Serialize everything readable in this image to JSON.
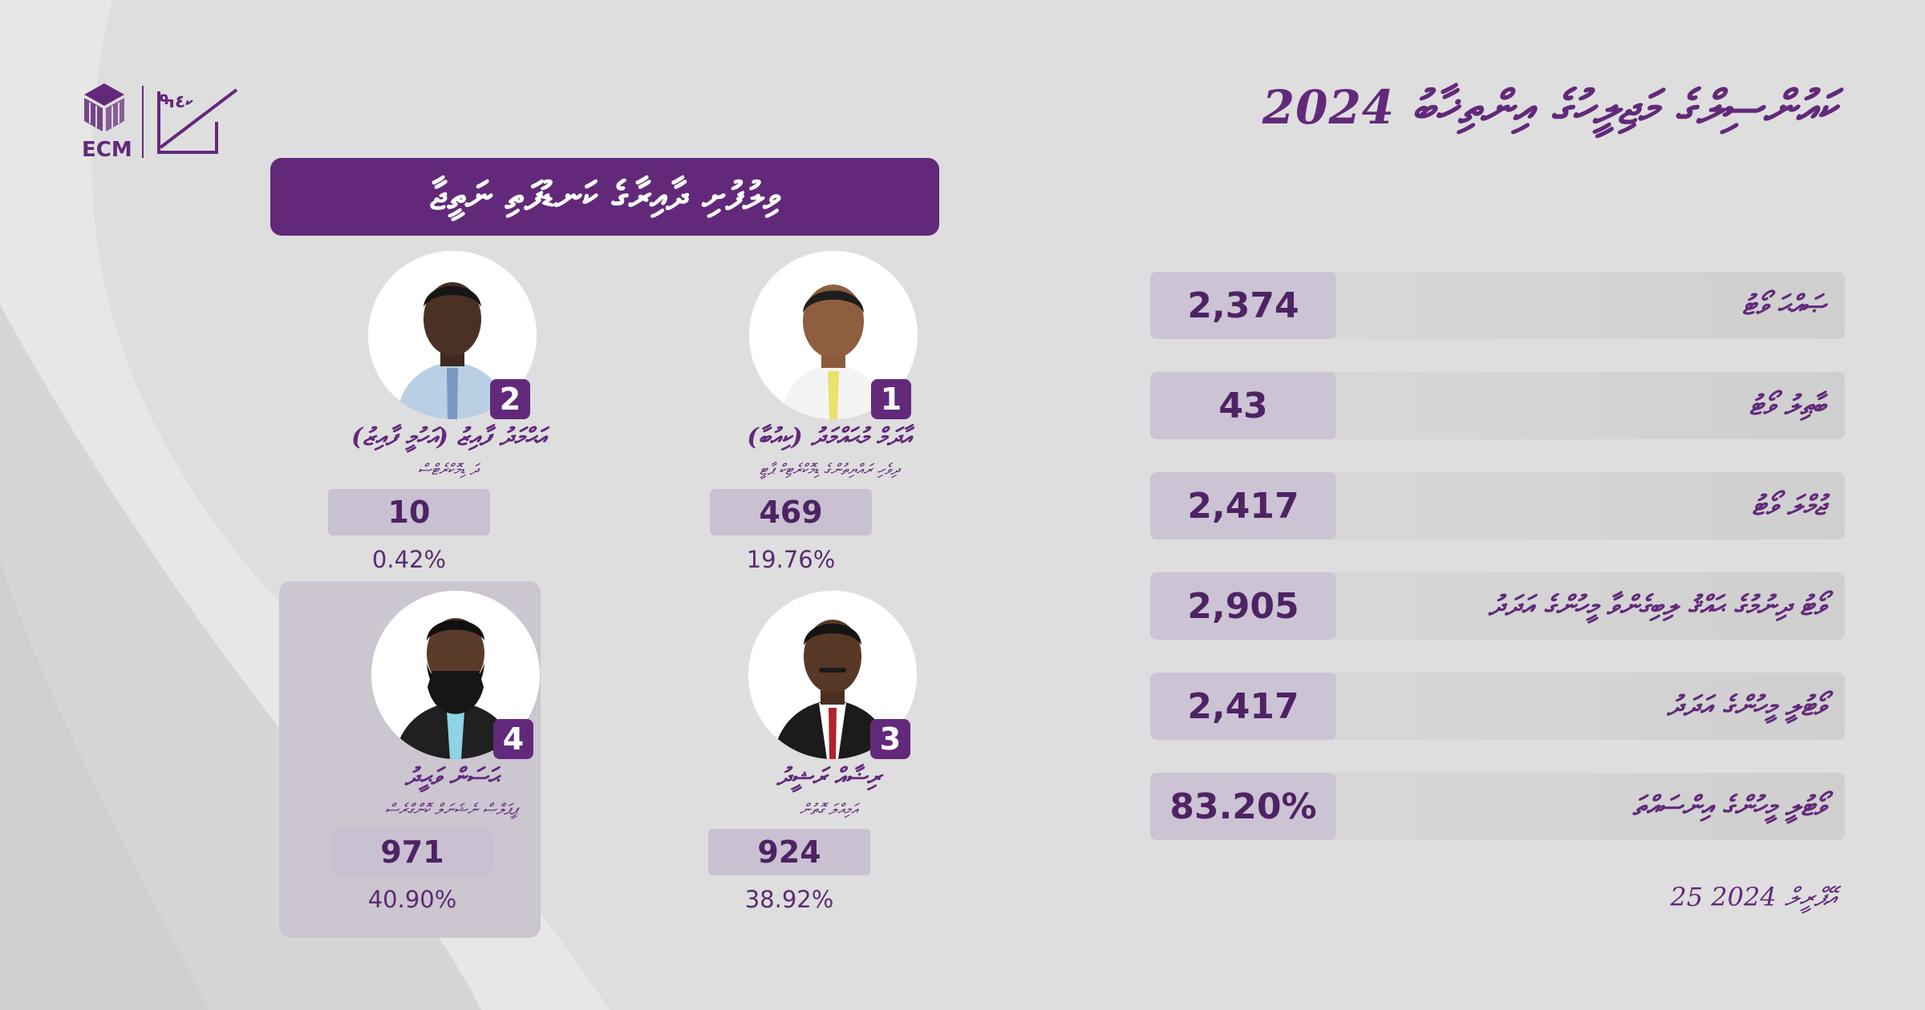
{
  "colors": {
    "brand_purple": "#62297a",
    "value_box": "#ccc3d4",
    "background": "#dedede"
  },
  "logo": {
    "abbr": "ECM",
    "icon": "cube-logo-icon",
    "ballot_icon": "ballot-check-icon"
  },
  "title": "ކައުންސިލްގެ މަޖިލީހުގެ އިންތިޚާބު 2024",
  "banner": "ވިލުފުށި ދާއިރާގެ ކަނޑުފަތި ނަތީޖާ",
  "candidates": [
    {
      "number": "1",
      "name": "އާދަމް މުޙައްމަދު (ކިއުބާ)",
      "party": "ދިވެހި ރައްޔިތުންގެ ޑިމޮކްރެޓިކް ޕާޓީ",
      "votes": "469",
      "percent": "19.76%"
    },
    {
      "number": "2",
      "name": "އަޙްމަދު ފާއިޒު (އަހުމީ ފާއިޒު)",
      "party": "ދަ ޑިމޮކްރެޓްސް",
      "votes": "10",
      "percent": "0.42%"
    },
    {
      "number": "3",
      "name": "ރިޟާއް ރަޝީދު",
      "party": "އަމިއްލަ ގޮތުން",
      "votes": "924",
      "percent": "38.92%"
    },
    {
      "number": "4",
      "name": "ޙަސަން ވަޙީދު",
      "party": "ޕީޕަލްސް ނެޝަނަލް ކޮންގްރެސް",
      "votes": "971",
      "percent": "40.90%"
    }
  ],
  "stats": [
    {
      "label": "ޞައްޙަ ވޯޓު",
      "value": "2,374"
    },
    {
      "label": "ބާޠިލު ވޯޓު",
      "value": "43"
    },
    {
      "label": "ޖުމްލަ ވޯޓު",
      "value": "2,417"
    },
    {
      "label": "ވޯޓު ދިނުމުގެ ޙައްޤު ލިބިގެންވާ މީހުންގެ އަދަދު",
      "value": "2,905"
    },
    {
      "label": "ވޯޓުލީ މީހުންގެ އަދަދު",
      "value": "2,417"
    },
    {
      "label": "ވޯޓުލީ މީހުންގެ އިންސައްތަ",
      "value": "83.20%"
    }
  ],
  "date": "25 އޭޕްރީލް 2024"
}
